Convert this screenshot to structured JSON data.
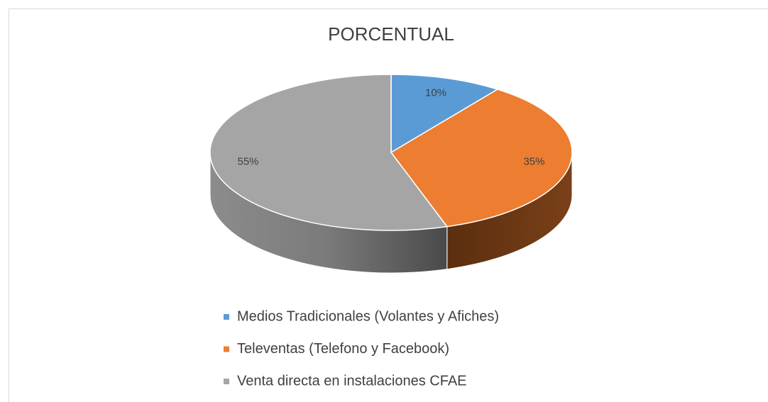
{
  "chart_data": {
    "type": "pie3d",
    "title": "PORCENTUAL",
    "categories": [
      "Medios Tradicionales (Volantes y Afiches)",
      "Televentas (Telefono y Facebook)",
      "Venta directa en instalaciones CFAE"
    ],
    "values": [
      10,
      35,
      55
    ],
    "value_labels": [
      "10%",
      "35%",
      "55%"
    ],
    "colors": [
      "#5b9bd5",
      "#ed7d31",
      "#a5a5a5"
    ],
    "legend": "bottom"
  }
}
